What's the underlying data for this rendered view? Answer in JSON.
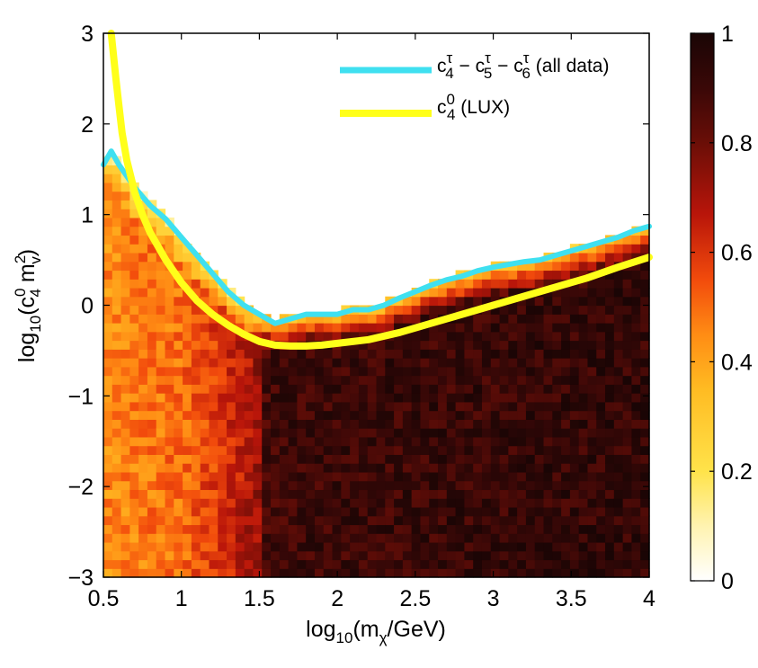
{
  "chart_data": {
    "type": "heatmap",
    "title": "",
    "xlabel": {
      "prefix": "log",
      "base": "10",
      "arg_open": "(m",
      "arg_sub": "χ",
      "arg_rest": "/GeV)"
    },
    "ylabel": {
      "prefix": "log",
      "base": "10",
      "arg_open": "(c",
      "c_sup": "0",
      "c_sub": "4",
      "m": " m",
      "m_sup": "2",
      "m_sub": "v",
      "close": ")"
    },
    "xlim": [
      0.5,
      4
    ],
    "ylim": [
      -3,
      3
    ],
    "xticks": [
      0.5,
      1,
      1.5,
      2,
      2.5,
      3,
      3.5,
      4
    ],
    "xtick_labels": [
      "0.5",
      "1",
      "1.5",
      "2",
      "2.5",
      "3",
      "3.5",
      "4"
    ],
    "yticks": [
      -3,
      -2,
      -1,
      0,
      1,
      2,
      3
    ],
    "ytick_labels": [
      "−3",
      "−2",
      "−1",
      "0",
      "1",
      "2",
      "3"
    ],
    "colorbar": {
      "range": [
        0,
        1
      ],
      "ticks": [
        0,
        0.2,
        0.4,
        0.6,
        0.8,
        1
      ],
      "tick_labels": [
        "0",
        "0.2",
        "0.4",
        "0.6",
        "0.8",
        "1"
      ],
      "colormap": [
        "#ffffff",
        "#fff3b0",
        "#ffe34a",
        "#ffbb22",
        "#ff8c14",
        "#f24b0c",
        "#b8150a",
        "#6a0e07",
        "#3a0807",
        "#1a0505"
      ]
    },
    "heatmap_model": {
      "grid_nx": 62,
      "grid_ny": 62,
      "description": "probability (0-1) as function of mass; low (~0.45) below 1, rising to ~0.9+ above 1.55",
      "mass_profile": [
        [
          0.5,
          0.45
        ],
        [
          1.0,
          0.5
        ],
        [
          1.25,
          0.6
        ],
        [
          1.5,
          0.72
        ],
        [
          1.55,
          0.9
        ],
        [
          4.0,
          0.93
        ]
      ]
    },
    "series": [
      {
        "name": "all data",
        "label": {
          "c": "c",
          "parts": [
            [
              "4",
              "τ"
            ],
            [
              "5",
              "τ"
            ],
            [
              "6",
              "τ"
            ]
          ],
          "suffix": " (all data)"
        },
        "color": "#3fe0f0",
        "x": [
          0.5,
          0.55,
          0.6,
          0.7,
          0.8,
          0.9,
          1.0,
          1.1,
          1.2,
          1.3,
          1.4,
          1.5,
          1.6,
          1.7,
          1.8,
          1.9,
          2.0,
          2.1,
          2.2,
          2.3,
          2.4,
          2.5,
          2.6,
          2.7,
          2.8,
          2.9,
          3.0,
          3.1,
          3.2,
          3.3,
          3.4,
          3.5,
          3.6,
          3.7,
          3.8,
          3.9,
          4.0
        ],
        "y": [
          1.55,
          1.7,
          1.55,
          1.3,
          1.1,
          0.95,
          0.75,
          0.55,
          0.35,
          0.15,
          0.0,
          -0.1,
          -0.2,
          -0.15,
          -0.1,
          -0.1,
          -0.1,
          -0.05,
          -0.05,
          0.0,
          0.08,
          0.15,
          0.22,
          0.28,
          0.32,
          0.38,
          0.42,
          0.45,
          0.48,
          0.5,
          0.55,
          0.6,
          0.65,
          0.7,
          0.75,
          0.82,
          0.87
        ]
      },
      {
        "name": "LUX",
        "label": {
          "c": "c",
          "sup": "0",
          "sub": "4",
          "suffix": " (LUX)"
        },
        "color": "#ffff1a",
        "x": [
          0.55,
          0.58,
          0.6,
          0.62,
          0.65,
          0.7,
          0.75,
          0.8,
          0.9,
          1.0,
          1.1,
          1.2,
          1.3,
          1.4,
          1.5,
          1.6,
          1.7,
          1.8,
          1.9,
          2.0,
          2.2,
          2.4,
          2.6,
          2.8,
          3.0,
          3.2,
          3.4,
          3.6,
          3.8,
          4.0
        ],
        "y": [
          3.0,
          2.5,
          2.2,
          1.9,
          1.6,
          1.25,
          1.0,
          0.8,
          0.5,
          0.25,
          0.05,
          -0.1,
          -0.22,
          -0.32,
          -0.4,
          -0.44,
          -0.45,
          -0.45,
          -0.44,
          -0.42,
          -0.38,
          -0.3,
          -0.2,
          -0.1,
          0.0,
          0.1,
          0.2,
          0.3,
          0.42,
          0.53
        ]
      }
    ]
  }
}
